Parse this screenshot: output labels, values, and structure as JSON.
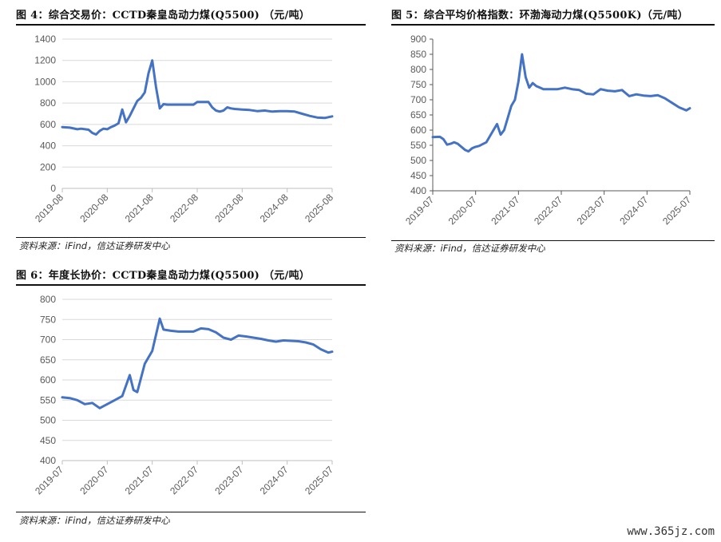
{
  "charts": [
    {
      "figure_title": "图 4：综合交易价：CCTD秦皇岛动力煤(Q5500) （元/吨）",
      "source": "资料来源：iFind，信达证券研发中心",
      "chart_data": {
        "type": "line",
        "title": "图 4：综合交易价：CCTD秦皇岛动力煤(Q5500) （元/吨）",
        "xlabel": "",
        "ylabel": "",
        "ylim": [
          0,
          1400
        ],
        "yticks": [
          0,
          200,
          400,
          600,
          800,
          1000,
          1200,
          1400
        ],
        "xlim": [
          "2019-08",
          "2025-08"
        ],
        "xticks": [
          "2019-08",
          "2020-08",
          "2021-08",
          "2022-08",
          "2023-08",
          "2024-08",
          "2025-08"
        ],
        "grid": true,
        "legend": "none",
        "color": "#4472C4",
        "series": [
          {
            "x": [
              "2019-08",
              "2019-10",
              "2019-12",
              "2020-01",
              "2020-03",
              "2020-04",
              "2020-05",
              "2020-06",
              "2020-07",
              "2020-08",
              "2020-09",
              "2020-10",
              "2020-11",
              "2020-12",
              "2021-01",
              "2021-02",
              "2021-03",
              "2021-04",
              "2021-05",
              "2021-06",
              "2021-07",
              "2021-08",
              "2021-09",
              "2021-10",
              "2021-11",
              "2021-12",
              "2022-01",
              "2022-03",
              "2022-05",
              "2022-07",
              "2022-08",
              "2022-10",
              "2022-11",
              "2022-12",
              "2023-01",
              "2023-02",
              "2023-03",
              "2023-04",
              "2023-05",
              "2023-06",
              "2023-08",
              "2023-10",
              "2023-12",
              "2024-02",
              "2024-04",
              "2024-06",
              "2024-08",
              "2024-10",
              "2024-12",
              "2025-02",
              "2025-04",
              "2025-06",
              "2025-08"
            ],
            "values": [
              575,
              570,
              555,
              560,
              550,
              520,
              505,
              540,
              560,
              555,
              575,
              590,
              610,
              740,
              620,
              680,
              750,
              820,
              850,
              900,
              1080,
              1200,
              950,
              750,
              790,
              785,
              785,
              785,
              785,
              785,
              810,
              810,
              810,
              760,
              730,
              720,
              730,
              760,
              750,
              745,
              740,
              735,
              725,
              730,
              720,
              725,
              725,
              720,
              700,
              680,
              665,
              660,
              675
            ]
          }
        ]
      }
    },
    {
      "figure_title": "图 5：综合平均价格指数：环渤海动力煤(Q5500K)（元/吨）",
      "source": "资料来源：iFind，信达证券研发中心",
      "chart_data": {
        "type": "line",
        "title": "图 5：综合平均价格指数：环渤海动力煤(Q5500K)（元/吨）",
        "xlabel": "",
        "ylabel": "",
        "ylim": [
          400,
          900
        ],
        "yticks": [
          400,
          450,
          500,
          550,
          600,
          650,
          700,
          750,
          800,
          850,
          900
        ],
        "xlim": [
          "2019-07",
          "2025-07"
        ],
        "xticks": [
          "2019-07",
          "2020-07",
          "2021-07",
          "2022-07",
          "2023-07",
          "2024-07",
          "2025-07"
        ],
        "grid": false,
        "legend": "none",
        "color": "#4472C4",
        "series": [
          {
            "x": [
              "2019-07",
              "2019-09",
              "2019-10",
              "2019-11",
              "2019-12",
              "2020-01",
              "2020-02",
              "2020-04",
              "2020-05",
              "2020-06",
              "2020-07",
              "2020-08",
              "2020-10",
              "2020-12",
              "2021-01",
              "2021-02",
              "2021-03",
              "2021-04",
              "2021-05",
              "2021-06",
              "2021-07",
              "2021-08",
              "2021-09",
              "2021-10",
              "2021-11",
              "2021-12",
              "2022-01",
              "2022-02",
              "2022-04",
              "2022-06",
              "2022-08",
              "2022-10",
              "2022-12",
              "2023-02",
              "2023-04",
              "2023-06",
              "2023-08",
              "2023-10",
              "2023-12",
              "2024-02",
              "2024-04",
              "2024-06",
              "2024-08",
              "2024-10",
              "2024-12",
              "2025-02",
              "2025-04",
              "2025-06",
              "2025-07"
            ],
            "values": [
              577,
              578,
              570,
              552,
              555,
              560,
              555,
              535,
              530,
              540,
              545,
              548,
              560,
              600,
              620,
              585,
              600,
              640,
              680,
              700,
              760,
              850,
              775,
              740,
              755,
              745,
              740,
              735,
              735,
              735,
              740,
              735,
              732,
              720,
              718,
              735,
              730,
              728,
              732,
              712,
              718,
              714,
              712,
              715,
              705,
              690,
              675,
              665,
              672
            ]
          }
        ]
      }
    },
    {
      "figure_title": "图 6：年度长协价：CCTD秦皇岛动力煤(Q5500) （元/吨）",
      "source": "资料来源：iFind，信达证券研发中心",
      "chart_data": {
        "type": "line",
        "title": "图 6：年度长协价：CCTD秦皇岛动力煤(Q5500) （元/吨）",
        "xlabel": "",
        "ylabel": "",
        "ylim": [
          400,
          800
        ],
        "yticks": [
          400,
          450,
          500,
          550,
          600,
          650,
          700,
          750,
          800
        ],
        "xlim": [
          "2019-07",
          "2025-07"
        ],
        "xticks": [
          "2019-07",
          "2020-07",
          "2021-07",
          "2022-07",
          "2023-07",
          "2024-07",
          "2025-07"
        ],
        "grid": true,
        "legend": "none",
        "color": "#4472C4",
        "series": [
          {
            "x": [
              "2019-07",
              "2019-09",
              "2019-11",
              "2020-01",
              "2020-03",
              "2020-05",
              "2020-07",
              "2020-09",
              "2020-11",
              "2021-01",
              "2021-02",
              "2021-03",
              "2021-05",
              "2021-07",
              "2021-09",
              "2021-10",
              "2021-12",
              "2022-02",
              "2022-04",
              "2022-06",
              "2022-08",
              "2022-10",
              "2022-12",
              "2023-02",
              "2023-04",
              "2023-06",
              "2023-08",
              "2023-10",
              "2023-12",
              "2024-02",
              "2024-04",
              "2024-06",
              "2024-08",
              "2024-10",
              "2024-12",
              "2025-02",
              "2025-04",
              "2025-06",
              "2025-07"
            ],
            "values": [
              557,
              555,
              550,
              540,
              543,
              530,
              540,
              550,
              560,
              612,
              575,
              570,
              640,
              672,
              752,
              725,
              722,
              720,
              720,
              720,
              728,
              726,
              718,
              705,
              700,
              710,
              708,
              705,
              702,
              698,
              695,
              698,
              697,
              696,
              693,
              688,
              676,
              668,
              670
            ]
          }
        ]
      }
    }
  ],
  "watermark": "www.365jz.com"
}
